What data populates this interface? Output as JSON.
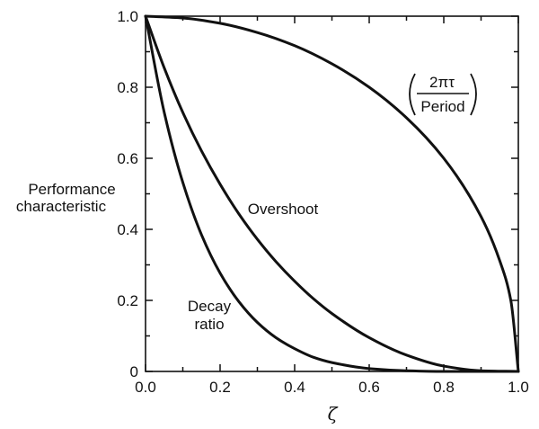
{
  "chart_data": {
    "type": "line",
    "xlabel": "ζ",
    "ylabel_lines": [
      "Performance",
      "characteristic"
    ],
    "xlim": [
      0,
      1
    ],
    "ylim": [
      0,
      1
    ],
    "grid": false,
    "x_ticks": [
      0,
      0.2,
      0.4,
      0.6,
      0.8,
      1.0
    ],
    "y_ticks": [
      0,
      0.2,
      0.4,
      0.6,
      0.8,
      1.0
    ],
    "x_tick_labels": [
      "0.0",
      "0.2",
      "0.4",
      "0.6",
      "0.8",
      "1.0"
    ],
    "y_tick_labels": [
      "0",
      "0.2",
      "0.4",
      "0.6",
      "0.8",
      "1.0"
    ],
    "series": [
      {
        "name": "(2πτ / Period)",
        "label_numerator": "2πτ",
        "label_denominator": "Period",
        "x": [
          0,
          0.1,
          0.2,
          0.3,
          0.4,
          0.5,
          0.6,
          0.7,
          0.8,
          0.9,
          0.95,
          0.98,
          1.0
        ],
        "y": [
          1.0,
          0.995,
          0.98,
          0.954,
          0.917,
          0.866,
          0.8,
          0.714,
          0.6,
          0.436,
          0.312,
          0.199,
          0.0
        ]
      },
      {
        "name": "Overshoot",
        "x": [
          0,
          0.05,
          0.1,
          0.15,
          0.2,
          0.25,
          0.3,
          0.35,
          0.4,
          0.45,
          0.5,
          0.6,
          0.7,
          0.8,
          0.9,
          1.0
        ],
        "y": [
          1.0,
          0.855,
          0.729,
          0.621,
          0.527,
          0.444,
          0.372,
          0.309,
          0.254,
          0.205,
          0.163,
          0.095,
          0.046,
          0.015,
          0.002,
          0.0
        ]
      },
      {
        "name": "Decay ratio",
        "x": [
          0,
          0.05,
          0.1,
          0.15,
          0.2,
          0.25,
          0.3,
          0.35,
          0.4,
          0.45,
          0.5,
          0.6,
          0.7,
          0.8,
          0.9,
          1.0
        ],
        "y": [
          1.0,
          0.73,
          0.532,
          0.385,
          0.277,
          0.197,
          0.138,
          0.095,
          0.064,
          0.04,
          0.025,
          0.008,
          0.002,
          0.0,
          0.0,
          0.0
        ]
      }
    ],
    "annotations": {
      "overshoot": "Overshoot",
      "decay_line1": "Decay",
      "decay_line2": "ratio"
    }
  }
}
